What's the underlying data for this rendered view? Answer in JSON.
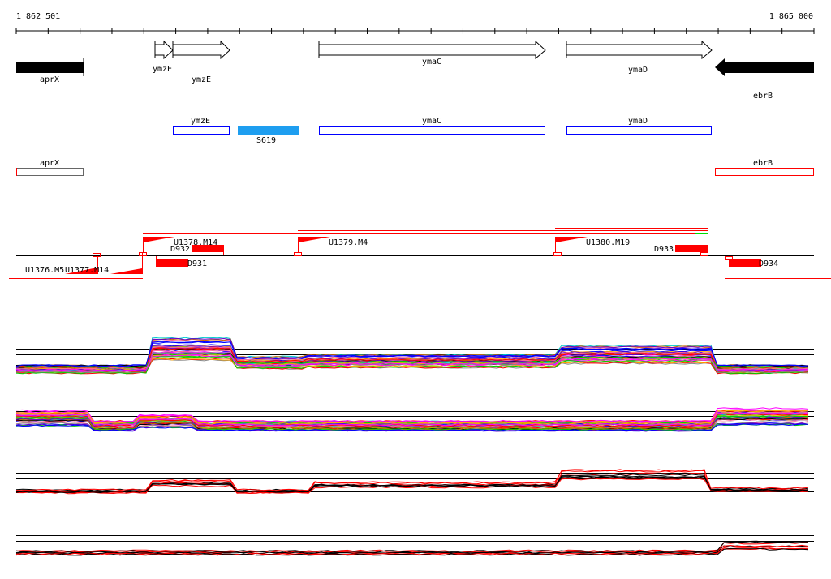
{
  "ruler": {
    "start_label": "1 862 501",
    "end_label": "1 865 000"
  },
  "genes": [
    {
      "name": "aprX",
      "strand": "-",
      "filled": true
    },
    {
      "name": "ymzE",
      "strand": "+",
      "filled": false
    },
    {
      "name": "ymzE",
      "strand": "+",
      "filled": false
    },
    {
      "name": "ymaC",
      "strand": "+",
      "filled": false
    },
    {
      "name": "ymaD",
      "strand": "+",
      "filled": false
    },
    {
      "name": "ebrB",
      "strand": "-",
      "filled": true
    }
  ],
  "cds_track": [
    {
      "name": "ymzE"
    },
    {
      "name": "S619",
      "color": "#1e9ef0"
    },
    {
      "name": "ymaC"
    },
    {
      "name": "ymaD"
    }
  ],
  "other_track": [
    {
      "name": "aprX"
    },
    {
      "name": "ebrB"
    }
  ],
  "transcription_units": [
    {
      "name": "U1376.M5"
    },
    {
      "name": "U1377.M14"
    },
    {
      "name": "U1378.M14"
    },
    {
      "name": "U1379.M4"
    },
    {
      "name": "U1380.M19"
    }
  ],
  "terminators": [
    {
      "name": "D931"
    },
    {
      "name": "D932"
    },
    {
      "name": "D933"
    },
    {
      "name": "D934"
    }
  ],
  "colors": {
    "blue_box": "#0000ff",
    "red": "#ff0000",
    "cds_fill": "#1e9ef0"
  }
}
